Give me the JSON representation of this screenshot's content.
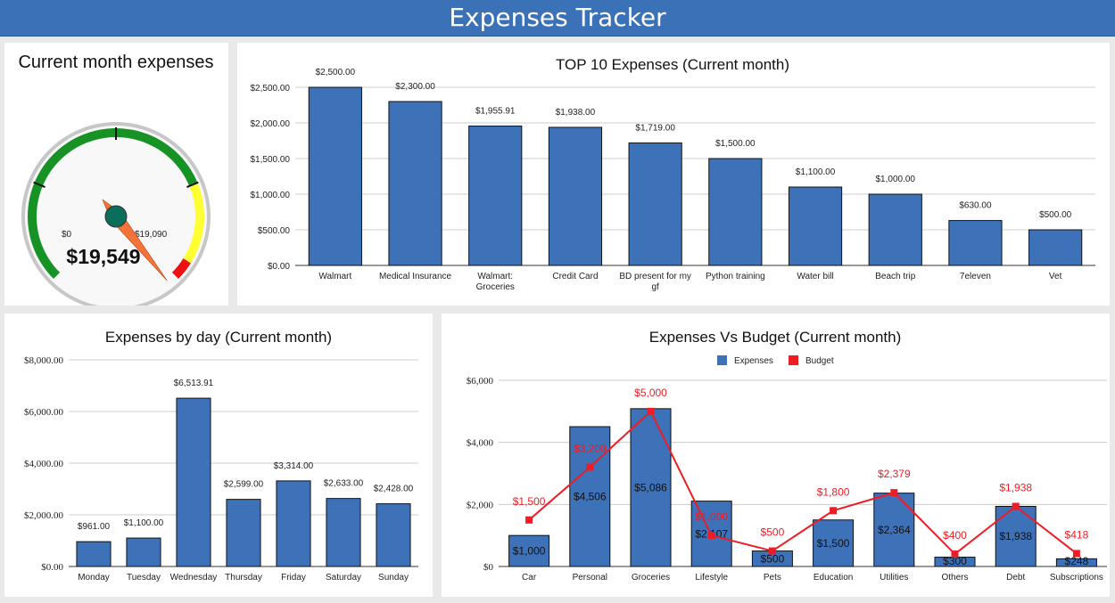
{
  "header": {
    "title": "Expenses Tracker"
  },
  "gauge": {
    "title": "Current month expenses",
    "value": 19549,
    "value_label": "$19,549",
    "min_label": "$0",
    "max_label": "$19,090",
    "min": 0,
    "max": 19090,
    "colors": {
      "green": "#179225",
      "yellow": "#ffff33",
      "red": "#ee1111",
      "needle": "#f4733a",
      "hub": "#0b6e5a"
    }
  },
  "chart_data": [
    {
      "id": "top10",
      "type": "bar",
      "title": "TOP 10 Expenses (Current month)",
      "categories": [
        [
          "Walmart"
        ],
        [
          "Medical Insurance"
        ],
        [
          "Walmart:",
          "Groceries"
        ],
        [
          "Credit Card"
        ],
        [
          "BD present for my",
          "gf"
        ],
        [
          "Python training"
        ],
        [
          "Water bill"
        ],
        [
          "Beach trip"
        ],
        [
          "7eleven"
        ],
        [
          "Vet"
        ]
      ],
      "values": [
        2500,
        2300,
        1955.91,
        1938,
        1719,
        1500,
        1100,
        1000,
        630,
        500
      ],
      "value_labels": [
        "$2,500.00",
        "$2,300.00",
        "$1,955.91",
        "$1,938.00",
        "$1,719.00",
        "$1,500.00",
        "$1,100.00",
        "$1,000.00",
        "$630.00",
        "$500.00"
      ],
      "yticks": [
        "$0.00",
        "$500.00",
        "$1,000.00",
        "$1,500.00",
        "$2,000.00",
        "$2,500.00"
      ],
      "ylim": [
        0,
        2500
      ],
      "grid": true,
      "color": "#3d72b8"
    },
    {
      "id": "byday",
      "type": "bar",
      "title": "Expenses by day (Current month)",
      "categories": [
        "Monday",
        "Tuesday",
        "Wednesday",
        "Thursday",
        "Friday",
        "Saturday",
        "Sunday"
      ],
      "values": [
        961,
        1100,
        6513.91,
        2599,
        3314,
        2633,
        2428
      ],
      "value_labels": [
        "$961.00",
        "$1,100.00",
        "$6,513.91",
        "$2,599.00",
        "$3,314.00",
        "$2,633.00",
        "$2,428.00"
      ],
      "yticks": [
        "$0.00",
        "$2,000.00",
        "$4,000.00",
        "$6,000.00",
        "$8,000.00"
      ],
      "ylim": [
        0,
        8000
      ],
      "grid": true,
      "color": "#3d72b8"
    },
    {
      "id": "vsbudget",
      "type": "bar",
      "title": "Expenses Vs Budget (Current month)",
      "categories": [
        "Car",
        "Personal",
        "Groceries",
        "Lifestyle",
        "Pets",
        "Education",
        "Utilities",
        "Others",
        "Debt",
        "Subscriptions"
      ],
      "yticks": [
        "$0",
        "$2,000",
        "$4,000",
        "$6,000"
      ],
      "ylim": [
        0,
        6000
      ],
      "legend": "top",
      "grid": true,
      "series": [
        {
          "name": "Expenses",
          "type": "bar",
          "color": "#3d72b8",
          "values": [
            1000,
            4506,
            5086,
            2107,
            500,
            1500,
            2364,
            300,
            1938,
            248
          ],
          "labels": [
            "$1,000",
            "$4,506",
            "$5,086",
            "$2,107",
            "$500",
            "$1,500",
            "$2,364",
            "$300",
            "$1,938",
            "$248"
          ]
        },
        {
          "name": "Budget",
          "type": "line",
          "color": "#ee1c25",
          "values": [
            1500,
            3200,
            5000,
            1000,
            500,
            1800,
            2379,
            400,
            1938,
            418
          ],
          "labels": [
            "$1,500",
            "$3,200",
            "$5,000",
            "$1,000",
            "$500",
            "$1,800",
            "$2,379",
            "$400",
            "$1,938",
            "$418"
          ]
        }
      ]
    }
  ]
}
